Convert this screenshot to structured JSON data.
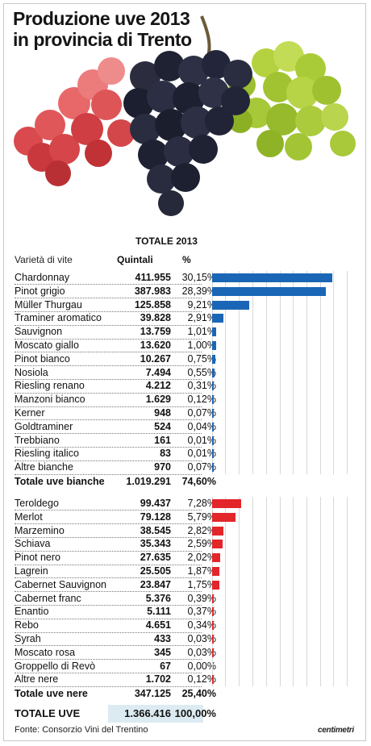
{
  "title_line1": "Produzione uve 2013",
  "title_line2": "in provincia di Trento",
  "header": {
    "group": "TOTALE 2013",
    "variety": "Varietà di vite",
    "quantity": "Quintali",
    "percent": "%"
  },
  "colors": {
    "white_grapes_bar": "#1a66b6",
    "red_grapes_bar": "#e3262a",
    "total_box": "#dcebf1"
  },
  "chart_data": {
    "type": "bar",
    "orientation": "horizontal",
    "unit": "Quintali",
    "groups": [
      {
        "name": "bianche",
        "color": "#1a66b6",
        "rows": [
          {
            "label": "Chardonnay",
            "quintali": "411.955",
            "percent": "30,15%",
            "value": 30.15
          },
          {
            "label": "Pinot grigio",
            "quintali": "387.983",
            "percent": "28,39%",
            "value": 28.39
          },
          {
            "label": "Müller Thurgau",
            "quintali": "125.858",
            "percent": "9,21%",
            "value": 9.21
          },
          {
            "label": "Traminer aromatico",
            "quintali": "39.828",
            "percent": "2,91%",
            "value": 2.91
          },
          {
            "label": "Sauvignon",
            "quintali": "13.759",
            "percent": "1,01%",
            "value": 1.01
          },
          {
            "label": "Moscato giallo",
            "quintali": "13.620",
            "percent": "1,00%",
            "value": 1.0
          },
          {
            "label": "Pinot bianco",
            "quintali": "10.267",
            "percent": "0,75%",
            "value": 0.75
          },
          {
            "label": "Nosiola",
            "quintali": "7.494",
            "percent": "0,55%",
            "value": 0.55
          },
          {
            "label": "Riesling renano",
            "quintali": "4.212",
            "percent": "0,31%",
            "value": 0.31
          },
          {
            "label": "Manzoni bianco",
            "quintali": "1.629",
            "percent": "0,12%",
            "value": 0.12
          },
          {
            "label": "Kerner",
            "quintali": "948",
            "percent": "0,07%",
            "value": 0.07
          },
          {
            "label": "Goldtraminer",
            "quintali": "524",
            "percent": "0,04%",
            "value": 0.04
          },
          {
            "label": "Trebbiano",
            "quintali": "161",
            "percent": "0,01%",
            "value": 0.01
          },
          {
            "label": "Riesling italico",
            "quintali": "83",
            "percent": "0,01%",
            "value": 0.01
          },
          {
            "label": "Altre bianche",
            "quintali": "970",
            "percent": "0,07%",
            "value": 0.07
          }
        ],
        "total": {
          "label": "Totale uve bianche",
          "quintali": "1.019.291",
          "percent": "74,60%"
        }
      },
      {
        "name": "nere",
        "color": "#e3262a",
        "rows": [
          {
            "label": "Teroldego",
            "quintali": "99.437",
            "percent": "7,28%",
            "value": 7.28
          },
          {
            "label": "Merlot",
            "quintali": "79.128",
            "percent": "5,79%",
            "value": 5.79
          },
          {
            "label": "Marzemino",
            "quintali": "38.545",
            "percent": "2,82%",
            "value": 2.82
          },
          {
            "label": "Schiava",
            "quintali": "35.343",
            "percent": "2,59%",
            "value": 2.59
          },
          {
            "label": "Pinot nero",
            "quintali": "27.635",
            "percent": "2,02%",
            "value": 2.02
          },
          {
            "label": "Lagrein",
            "quintali": "25.505",
            "percent": "1,87%",
            "value": 1.87
          },
          {
            "label": "Cabernet Sauvignon",
            "quintali": "23.847",
            "percent": "1,75%",
            "value": 1.75
          },
          {
            "label": "Cabernet franc",
            "quintali": "5.376",
            "percent": "0,39%",
            "value": 0.39
          },
          {
            "label": "Enantio",
            "quintali": "5.111",
            "percent": "0,37%",
            "value": 0.37
          },
          {
            "label": "Rebo",
            "quintali": "4.651",
            "percent": "0,34%",
            "value": 0.34
          },
          {
            "label": "Syrah",
            "quintali": "433",
            "percent": "0,03%",
            "value": 0.03
          },
          {
            "label": "Moscato rosa",
            "quintali": "345",
            "percent": "0,03%",
            "value": 0.03
          },
          {
            "label": "Groppello di Revò",
            "quintali": "67",
            "percent": "0,00%",
            "value": 0.0
          },
          {
            "label": "Altre nere",
            "quintali": "1.702",
            "percent": "0,12%",
            "value": 0.12
          }
        ],
        "total": {
          "label": "Totale uve nere",
          "quintali": "347.125",
          "percent": "25,40%"
        }
      }
    ]
  },
  "grand_total": {
    "label": "TOTALE UVE",
    "quintali": "1.366.416",
    "percent": "100,00%"
  },
  "source": "Fonte: Consorzio Vini del Trentino",
  "logo": "centimetri"
}
